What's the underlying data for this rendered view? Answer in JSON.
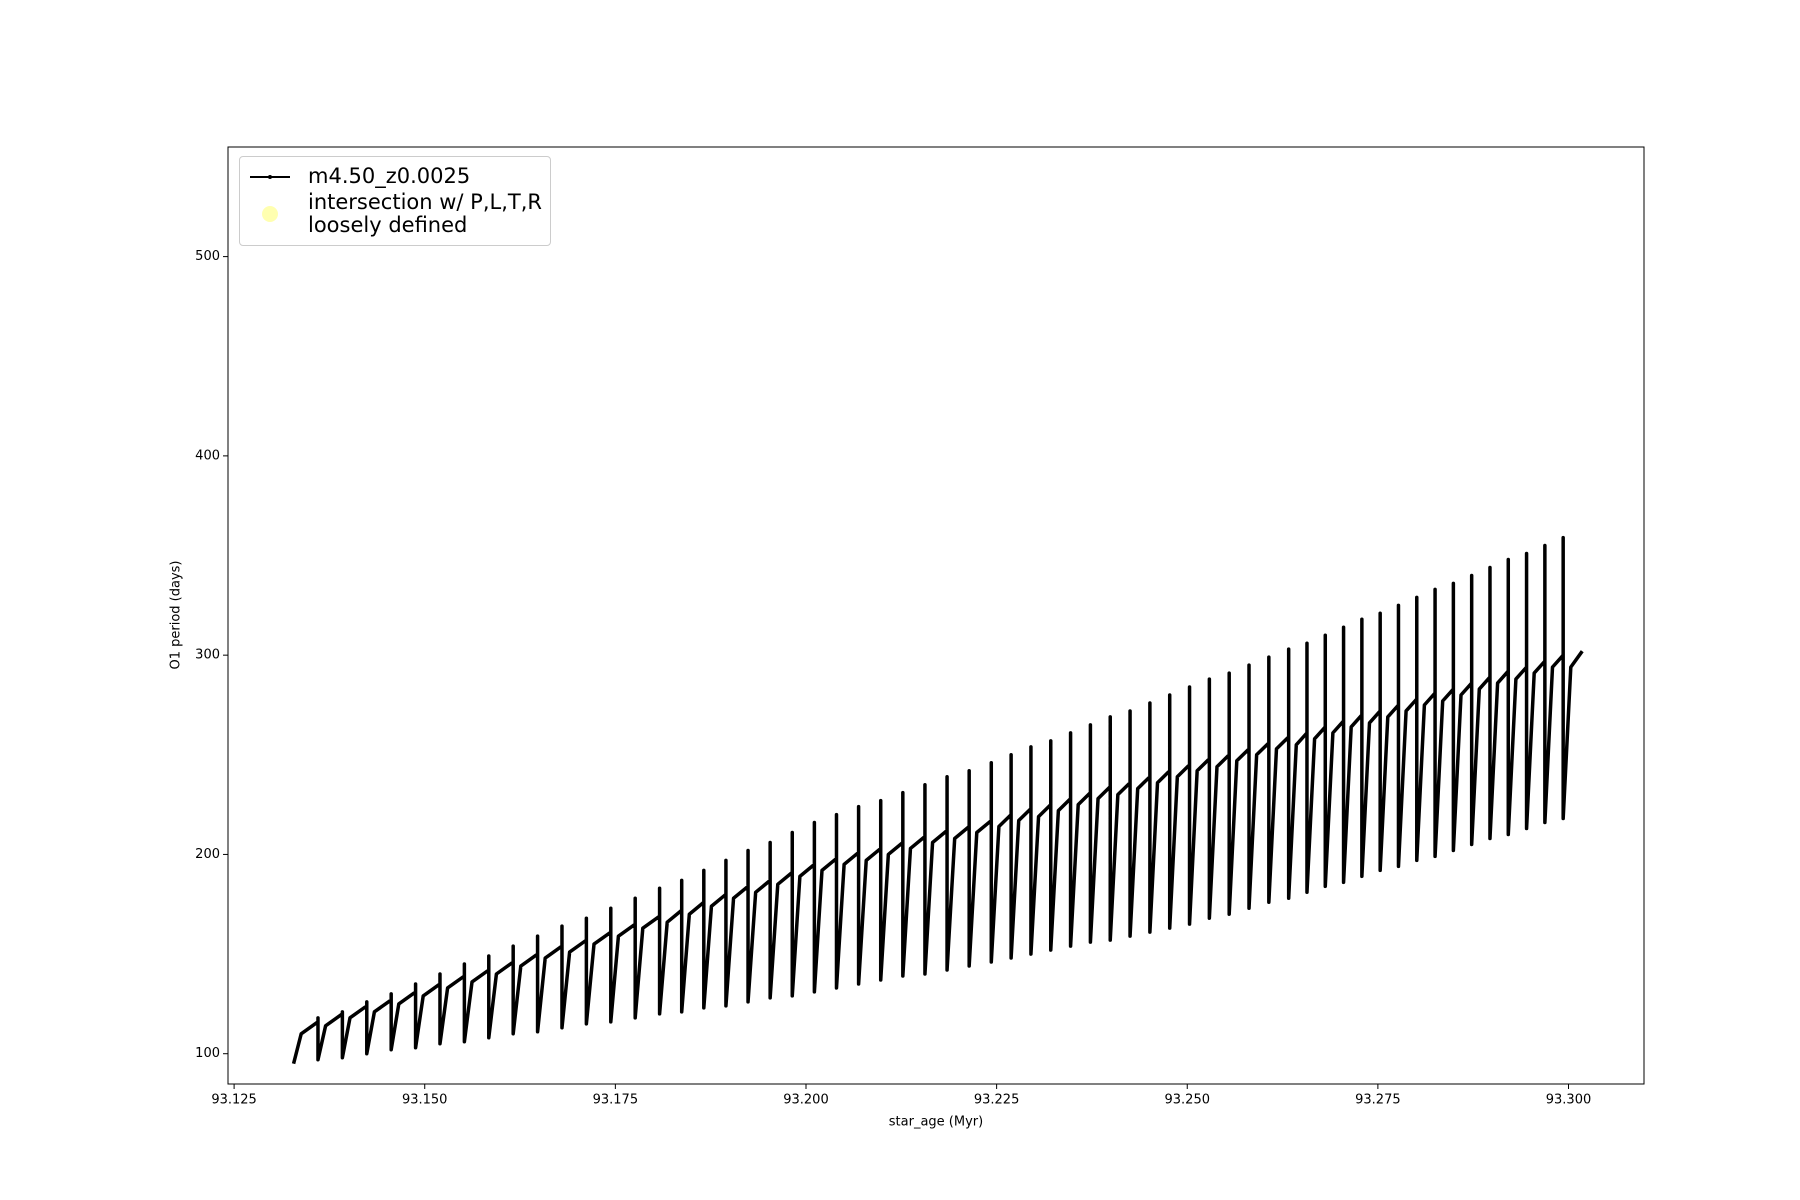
{
  "chart_data": {
    "type": "line",
    "xlabel": "star_age (Myr)",
    "ylabel": "O1 period (days)",
    "xlim": [
      93.1242,
      93.3099
    ],
    "ylim": [
      84.8,
      555
    ],
    "xticks": [
      93.125,
      {
        "value": 93.15,
        "label": "93.150"
      },
      93.175,
      {
        "value": 93.2,
        "label": "93.200"
      },
      93.225,
      {
        "value": 93.25,
        "label": "93.250"
      },
      93.275,
      {
        "value": 93.3,
        "label": "93.300"
      }
    ],
    "yticks": [
      100,
      200,
      300,
      400,
      500
    ],
    "grid": false,
    "legend": "upper left",
    "series": [
      {
        "name": "m4.50_z0.0025",
        "color": "#000000",
        "type": "line",
        "x": [
          93.1328,
          93.1338,
          93.136,
          93.136,
          93.136,
          93.137,
          93.1392,
          93.1392,
          93.1392,
          93.1402,
          93.1424,
          93.1424,
          93.1424,
          93.1434,
          93.1456,
          93.1456,
          93.1456,
          93.1466,
          93.1488,
          93.1488,
          93.1488,
          93.1498,
          93.152,
          93.152,
          93.152,
          93.153,
          93.1552,
          93.1552,
          93.1552,
          93.1562,
          93.1584,
          93.1584,
          93.1584,
          93.1594,
          93.1616,
          93.1616,
          93.1616,
          93.1626,
          93.1648,
          93.1648,
          93.1648,
          93.1658,
          93.168,
          93.168,
          93.168,
          93.169,
          93.1712,
          93.1712,
          93.1712,
          93.1722,
          93.1744,
          93.1744,
          93.1744,
          93.1754,
          93.1776,
          93.1776,
          93.1776,
          93.1786,
          93.1808,
          93.1808,
          93.1808,
          93.1818,
          93.1837,
          93.1837,
          93.1837,
          93.1847,
          93.1866,
          93.1866,
          93.1866,
          93.1876,
          93.1895,
          93.1895,
          93.1895,
          93.1905,
          93.1924,
          93.1924,
          93.1924,
          93.1934,
          93.1953,
          93.1953,
          93.1953,
          93.1963,
          93.1982,
          93.1982,
          93.1982,
          93.1992,
          93.2011,
          93.2011,
          93.2011,
          93.2021,
          93.204,
          93.204,
          93.204,
          93.205,
          93.2069,
          93.2069,
          93.2069,
          93.2079,
          93.2098,
          93.2098,
          93.2098,
          93.2108,
          93.2127,
          93.2127,
          93.2127,
          93.2137,
          93.2156,
          93.2156,
          93.2156,
          93.2166,
          93.2185,
          93.2185,
          93.2185,
          93.2195,
          93.2214,
          93.2214,
          93.2214,
          93.2224,
          93.2243,
          93.2243,
          93.2243,
          93.2253,
          93.2269,
          93.2269,
          93.2269,
          93.2279,
          93.2295,
          93.2295,
          93.2295,
          93.2305,
          93.2321,
          93.2321,
          93.2321,
          93.2331,
          93.2347,
          93.2347,
          93.2347,
          93.2357,
          93.2373,
          93.2373,
          93.2373,
          93.2383,
          93.2399,
          93.2399,
          93.2399,
          93.2409,
          93.2425,
          93.2425,
          93.2425,
          93.2435,
          93.2451,
          93.2451,
          93.2451,
          93.2461,
          93.2477,
          93.2477,
          93.2477,
          93.2487,
          93.2503,
          93.2503,
          93.2503,
          93.2513,
          93.2529,
          93.2529,
          93.2529,
          93.2539,
          93.2555,
          93.2555,
          93.2555,
          93.2565,
          93.2581,
          93.2581,
          93.2581,
          93.2591,
          93.2607,
          93.2607,
          93.2607,
          93.2617,
          93.2633,
          93.2633,
          93.2633,
          93.2643,
          93.2657,
          93.2657,
          93.2657,
          93.2667,
          93.2681,
          93.2681,
          93.2681,
          93.2691,
          93.2705,
          93.2705,
          93.2705,
          93.2715,
          93.2729,
          93.2729,
          93.2729,
          93.2739,
          93.2753,
          93.2753,
          93.2753,
          93.2763,
          93.2777,
          93.2777,
          93.2777,
          93.2787,
          93.2801,
          93.2801,
          93.2801,
          93.2811,
          93.2825,
          93.2825,
          93.2825,
          93.2835,
          93.2849,
          93.2849,
          93.2849,
          93.2859,
          93.2873,
          93.2873,
          93.2873,
          93.2883,
          93.2897,
          93.2897,
          93.2897,
          93.2907,
          93.2921,
          93.2921,
          93.2921,
          93.2931,
          93.2945,
          93.2945,
          93.2945,
          93.2955,
          93.2969,
          93.2969,
          93.2969,
          93.2979,
          93.2993,
          93.2993,
          93.2993,
          93.3003,
          93.3018
        ],
        "values": [
          95,
          110,
          116,
          118,
          97,
          114,
          120,
          121,
          98,
          118,
          124,
          126,
          100,
          121,
          127,
          130,
          102,
          125,
          131,
          135,
          103,
          129,
          135,
          140,
          105,
          133,
          139,
          145,
          106,
          136,
          142,
          149,
          108,
          140,
          146,
          154,
          110,
          144,
          150,
          159,
          111,
          148,
          154,
          164,
          113,
          151,
          157,
          168,
          115,
          155,
          161,
          173,
          116,
          159,
          165,
          178,
          118,
          163,
          169,
          183,
          120,
          166,
          172,
          187,
          121,
          170,
          176,
          192,
          123,
          174,
          180,
          197,
          124,
          178,
          184,
          202,
          126,
          181,
          187,
          206,
          128,
          185,
          191,
          211,
          129,
          189,
          195,
          216,
          131,
          192,
          198,
          220,
          133,
          195,
          201,
          224,
          135,
          197,
          203,
          227,
          137,
          200,
          206,
          231,
          139,
          203,
          209,
          235,
          140,
          206,
          212,
          239,
          142,
          208,
          214,
          242,
          144,
          211,
          217,
          246,
          146,
          214,
          220,
          250,
          148,
          217,
          223,
          254,
          150,
          219,
          225,
          257,
          152,
          222,
          228,
          261,
          154,
          225,
          231,
          265,
          156,
          228,
          234,
          269,
          157,
          230,
          236,
          272,
          159,
          233,
          239,
          276,
          161,
          236,
          242,
          280,
          163,
          239,
          245,
          284,
          165,
          242,
          248,
          288,
          168,
          244,
          250,
          291,
          170,
          247,
          253,
          295,
          173,
          250,
          256,
          299,
          176,
          253,
          259,
          303,
          178,
          255,
          261,
          306,
          181,
          258,
          264,
          310,
          184,
          261,
          267,
          314,
          186,
          264,
          270,
          318,
          189,
          266,
          272,
          321,
          192,
          269,
          275,
          325,
          194,
          272,
          278,
          329,
          197,
          275,
          281,
          333,
          199,
          277,
          283,
          336,
          202,
          280,
          286,
          340,
          205,
          283,
          289,
          344,
          208,
          286,
          292,
          348,
          210,
          288,
          294,
          351,
          213,
          291,
          297,
          355,
          216,
          294,
          300,
          359,
          218,
          294,
          302
        ]
      },
      {
        "name": "intersection w/ P,L,T,R\nloosely defined",
        "color": "#ffffb0",
        "type": "scatter",
        "x": [],
        "values": []
      }
    ]
  }
}
